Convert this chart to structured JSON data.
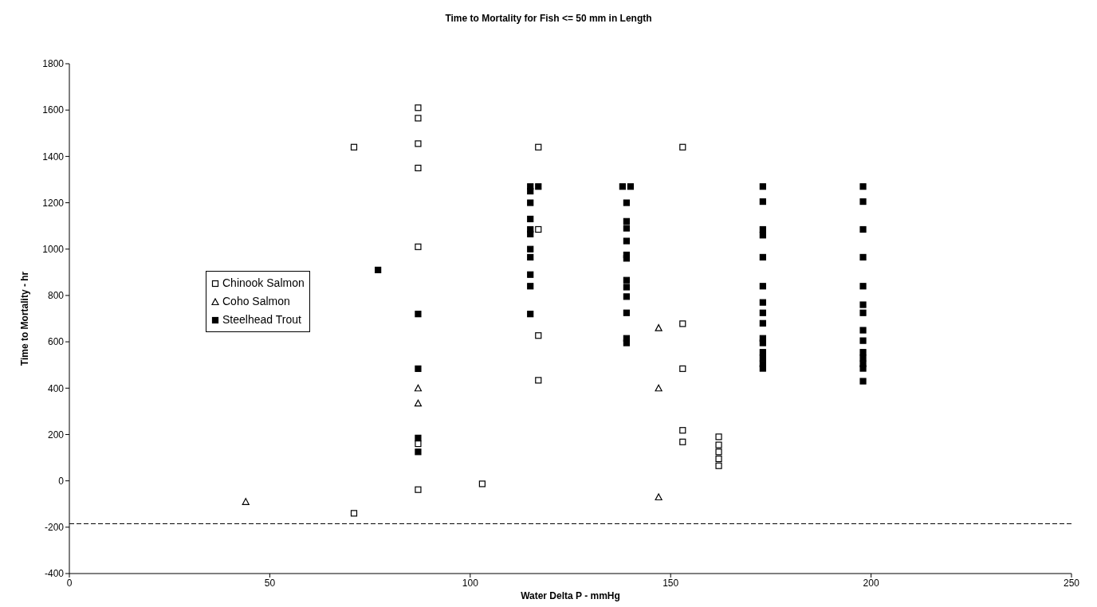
{
  "chart_data": {
    "type": "scatter",
    "title": "Time to Mortality for Fish <= 50 mm in Length",
    "xlabel": "Water Delta P - mmHg",
    "ylabel": "Time to Mortality - hr",
    "xlim": [
      0,
      250
    ],
    "xticks": [
      0,
      50,
      100,
      150,
      200,
      250
    ],
    "ylim": [
      -400,
      1800
    ],
    "yticks": [
      -400,
      -200,
      0,
      200,
      400,
      600,
      800,
      1000,
      1200,
      1400,
      1600,
      1800
    ],
    "grid": false,
    "legend": "left",
    "ref_lines": [
      {
        "axis": "y",
        "value": -185,
        "line_style": "dashed",
        "color": "#000000"
      }
    ],
    "series": [
      {
        "name": "Chinook Salmon",
        "marker": "square",
        "color": "#ffffff",
        "x": [
          71,
          71,
          87,
          87,
          87,
          87,
          87,
          87,
          87,
          103,
          117,
          117,
          117,
          117,
          153,
          153,
          153,
          153,
          153,
          162,
          162,
          162,
          162,
          162
        ],
        "values": [
          1440,
          -140,
          1610,
          1565,
          1455,
          1350,
          1010,
          160,
          -38,
          -13,
          1440,
          1085,
          627,
          434,
          1440,
          678,
          484,
          218,
          168,
          190,
          155,
          125,
          95,
          65
        ]
      },
      {
        "name": "Coho Salmon",
        "marker": "triangle",
        "color": "#ffffff",
        "x": [
          44,
          87,
          87,
          147,
          147,
          147
        ],
        "values": [
          -90,
          400,
          335,
          660,
          400,
          -70
        ]
      },
      {
        "name": "Steelhead Trout",
        "marker": "square",
        "color": "#000000",
        "x": [
          77,
          87,
          87,
          87,
          87,
          115,
          115,
          115,
          115,
          115,
          115,
          115,
          115,
          115,
          115,
          115,
          117,
          138,
          140,
          139,
          139,
          139,
          139,
          139,
          139,
          139,
          139,
          139,
          139,
          139,
          139,
          173,
          173,
          173,
          173,
          173,
          173,
          173,
          173,
          173,
          173,
          173,
          173,
          173,
          173,
          173,
          198,
          198,
          198,
          198,
          198,
          198,
          198,
          198,
          198,
          198,
          198,
          198,
          198,
          198
        ],
        "values": [
          910,
          720,
          484,
          185,
          125,
          1270,
          1250,
          1200,
          1130,
          1085,
          1065,
          1000,
          965,
          890,
          840,
          720,
          1270,
          1270,
          1270,
          1200,
          1120,
          1090,
          1035,
          975,
          960,
          866,
          836,
          795,
          725,
          615,
          595,
          1270,
          1205,
          1085,
          1060,
          965,
          840,
          770,
          725,
          680,
          615,
          595,
          555,
          530,
          505,
          485,
          1270,
          1205,
          1085,
          965,
          840,
          760,
          725,
          650,
          605,
          555,
          530,
          505,
          485,
          430
        ]
      }
    ]
  }
}
